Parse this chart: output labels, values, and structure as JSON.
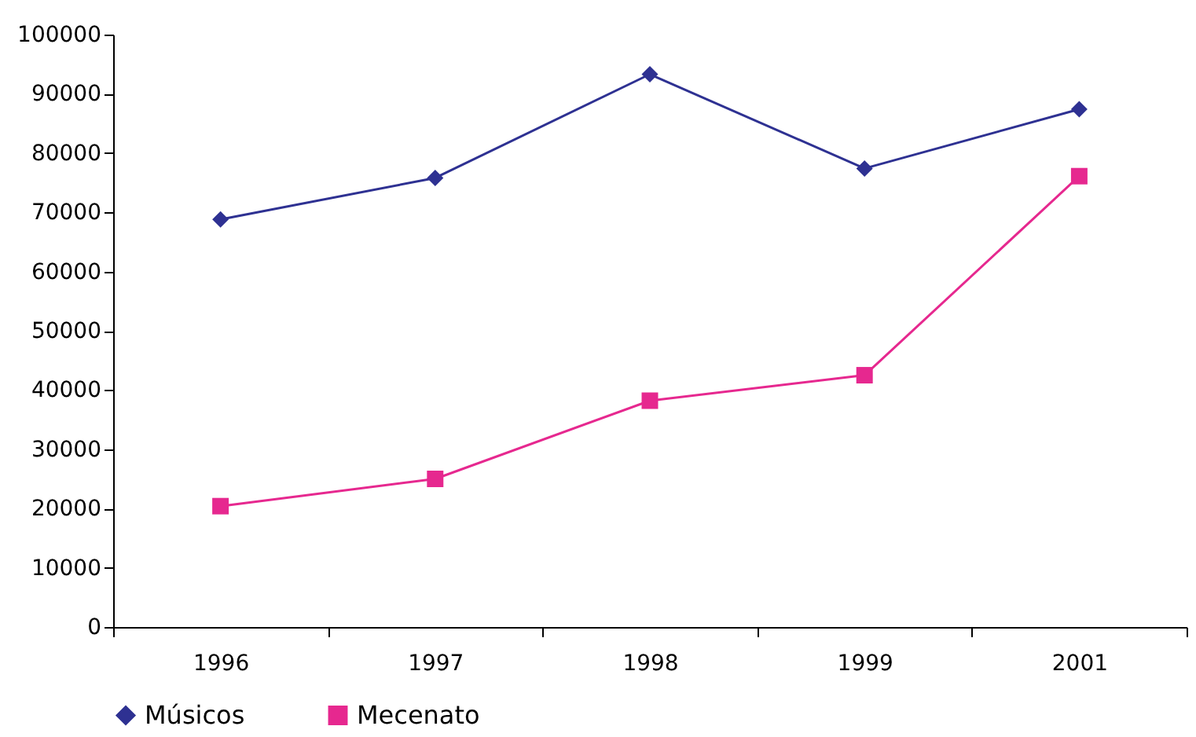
{
  "chart_data": {
    "type": "line",
    "categories": [
      "1996",
      "1997",
      "1998",
      "1999",
      "2001"
    ],
    "series": [
      {
        "name": "Músicos",
        "color": "#2e3192",
        "marker": "diamond",
        "values": [
          68800,
          75800,
          93300,
          77400,
          87400
        ]
      },
      {
        "name": "Mecenato",
        "color": "#e6288f",
        "marker": "square",
        "values": [
          20400,
          25000,
          38200,
          42500,
          76100
        ]
      }
    ],
    "ylim": [
      0,
      100000
    ],
    "yticks": [
      0,
      10000,
      20000,
      30000,
      40000,
      50000,
      60000,
      70000,
      80000,
      90000,
      100000
    ],
    "grid": false,
    "legend": "bottom",
    "line_style": "solid"
  }
}
